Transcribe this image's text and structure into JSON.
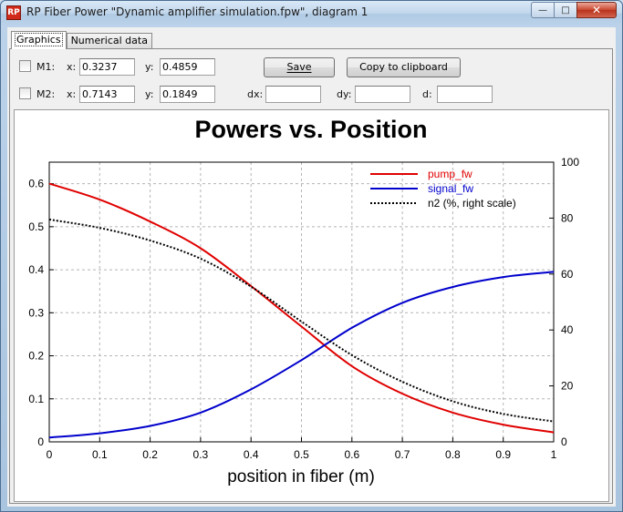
{
  "window": {
    "title": "RP Fiber Power \"Dynamic amplifier simulation.fpw\", diagram 1",
    "app_icon": "rp-fiber-power-icon",
    "buttons": {
      "minimize": "—",
      "maximize": "□",
      "close": "✕"
    }
  },
  "tabs": [
    {
      "label": "Graphics",
      "active": true
    },
    {
      "label": "Numerical data",
      "active": false
    }
  ],
  "markers": {
    "m1": {
      "label": "M1:",
      "checked": false,
      "x_label": "x:",
      "x": "0.3237",
      "y_label": "y:",
      "y": "0.4859"
    },
    "m2": {
      "label": "M2:",
      "checked": false,
      "x_label": "x:",
      "x": "0.7143",
      "y_label": "y:",
      "y": "0.1849"
    },
    "dx_label": "dx:",
    "dx": "",
    "dy_label": "dy:",
    "dy": "",
    "d_label": "d:",
    "d": ""
  },
  "buttons": {
    "save": "Save",
    "copy": "Copy to clipboard"
  },
  "chart_data": {
    "type": "line",
    "title": "Powers vs. Position",
    "xlabel": "position in fiber (m)",
    "ylabel": "",
    "y2label": "",
    "xlim": [
      0,
      1
    ],
    "ylim": [
      0,
      0.65
    ],
    "y2lim": [
      0,
      100
    ],
    "grid": true,
    "legend_position": "top-right",
    "x_ticks": [
      "0",
      "0.1",
      "0.2",
      "0.3",
      "0.4",
      "0.5",
      "0.6",
      "0.7",
      "0.8",
      "0.9",
      "1"
    ],
    "y_ticks": [
      "0",
      "0.1",
      "0.2",
      "0.3",
      "0.4",
      "0.5",
      "0.6"
    ],
    "y2_ticks": [
      "0",
      "20",
      "40",
      "60",
      "80",
      "100"
    ],
    "x": [
      0,
      0.1,
      0.2,
      0.3,
      0.4,
      0.5,
      0.6,
      0.7,
      0.8,
      0.9,
      1.0
    ],
    "series": [
      {
        "name": "pump_fw",
        "axis": "left",
        "color": "#e00000",
        "dash": "solid",
        "values": [
          0.6,
          0.563,
          0.512,
          0.45,
          0.362,
          0.268,
          0.176,
          0.112,
          0.068,
          0.04,
          0.022
        ]
      },
      {
        "name": "signal_fw",
        "axis": "left",
        "color": "#0000cc",
        "dash": "solid",
        "values": [
          0.01,
          0.02,
          0.037,
          0.068,
          0.122,
          0.19,
          0.265,
          0.323,
          0.36,
          0.383,
          0.395
        ]
      },
      {
        "name": "n2 (%, right scale)",
        "axis": "right",
        "color": "#000000",
        "dash": "dotted",
        "values": [
          79.5,
          76.5,
          72.0,
          65.5,
          55.5,
          43.0,
          31.0,
          21.5,
          14.5,
          10.0,
          7.3
        ]
      }
    ]
  }
}
